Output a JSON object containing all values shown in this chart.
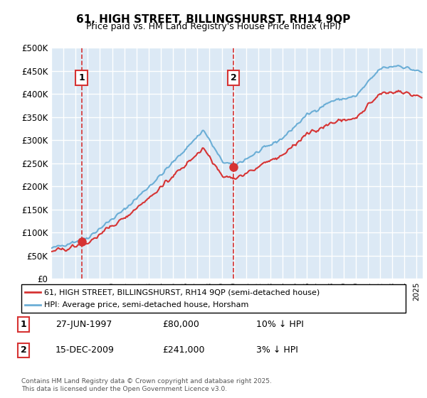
{
  "title": "61, HIGH STREET, BILLINGSHURST, RH14 9QP",
  "subtitle": "Price paid vs. HM Land Registry's House Price Index (HPI)",
  "xlabel": "",
  "ylabel": "",
  "ylim": [
    0,
    500000
  ],
  "yticks": [
    0,
    50000,
    100000,
    150000,
    200000,
    250000,
    300000,
    350000,
    400000,
    450000,
    500000
  ],
  "ytick_labels": [
    "£0",
    "£50K",
    "£100K",
    "£150K",
    "£200K",
    "£250K",
    "£300K",
    "£350K",
    "£400K",
    "£450K",
    "£500K"
  ],
  "bg_color": "#dce9f5",
  "grid_color": "#ffffff",
  "hpi_color": "#6baed6",
  "price_color": "#d63333",
  "sale1_date_num": 1997.49,
  "sale1_price": 80000,
  "sale2_date_num": 2009.96,
  "sale2_price": 241000,
  "legend1": "61, HIGH STREET, BILLINGSHURST, RH14 9QP (semi-detached house)",
  "legend2": "HPI: Average price, semi-detached house, Horsham",
  "label1_date": "27-JUN-1997",
  "label1_price": "£80,000",
  "label1_hpi": "10% ↓ HPI",
  "label2_date": "15-DEC-2009",
  "label2_price": "£241,000",
  "label2_hpi": "3% ↓ HPI",
  "footer": "Contains HM Land Registry data © Crown copyright and database right 2025.\nThis data is licensed under the Open Government Licence v3.0.",
  "xmin": 1995,
  "xmax": 2025.5
}
